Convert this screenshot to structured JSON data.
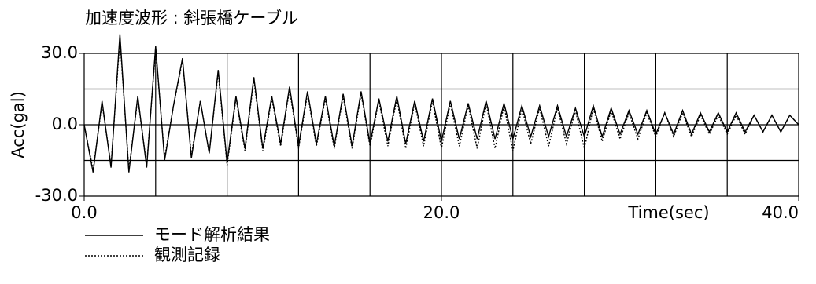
{
  "chart_data": {
    "type": "line",
    "title": "加速度波形 : 斜張橋ケーブル",
    "ylabel": "Acc(gal)",
    "xlabel": "Time(sec)",
    "xlim": [
      0,
      40
    ],
    "ylim": [
      -30,
      30
    ],
    "xticks": [
      {
        "value": 0,
        "label": "0.0"
      },
      {
        "value": 20,
        "label": "20.0"
      },
      {
        "value": 40,
        "label": "40.0"
      }
    ],
    "yticks": [
      {
        "value": -30,
        "label": "-30.0"
      },
      {
        "value": 0,
        "label": "0.0"
      },
      {
        "value": 30,
        "label": "30.0"
      }
    ],
    "xgrid": [
      0,
      4,
      8,
      12,
      16,
      20,
      24,
      28,
      32,
      36,
      40
    ],
    "ygrid": [
      -30,
      -15,
      0,
      15,
      30
    ],
    "x": [
      0,
      0.5,
      1,
      1.5,
      2,
      2.5,
      3,
      3.5,
      4,
      4.5,
      5,
      5.5,
      6,
      6.5,
      7,
      7.5,
      8,
      8.5,
      9,
      9.5,
      10,
      10.5,
      11,
      11.5,
      12,
      12.5,
      13,
      13.5,
      14,
      14.5,
      15,
      15.5,
      16,
      16.5,
      17,
      17.5,
      18,
      18.5,
      19,
      19.5,
      20,
      20.5,
      21,
      21.5,
      22,
      22.5,
      23,
      23.5,
      24,
      24.5,
      25,
      25.5,
      26,
      26.5,
      27,
      27.5,
      28,
      28.5,
      29,
      29.5,
      30,
      30.5,
      31,
      31.5,
      32,
      32.5,
      33,
      33.5,
      34,
      34.5,
      35,
      35.5,
      36,
      36.5,
      37,
      37.5,
      38,
      38.5,
      39,
      39.5,
      40
    ],
    "series": [
      {
        "name": "モード解析結果",
        "color": "#000000",
        "dash": "none",
        "values": [
          0,
          -20,
          10,
          -18,
          38,
          -20,
          12,
          -18,
          33,
          -15,
          8,
          28,
          -14,
          10,
          -12,
          23,
          -16,
          12,
          -10,
          20,
          -10,
          12,
          -8,
          16,
          -9,
          14,
          -8,
          12,
          -9,
          13,
          -9,
          14,
          -8,
          11,
          -7,
          12,
          -8,
          10,
          -7,
          11,
          -7,
          10,
          -6,
          9,
          -6,
          10,
          -6,
          9,
          -6,
          8,
          -5,
          8,
          -5,
          8,
          -5,
          7,
          -5,
          8,
          -5,
          7,
          -4,
          6,
          -4,
          6,
          -4,
          5,
          -4,
          6,
          -4,
          5,
          -3,
          5,
          -3,
          5,
          -3,
          4,
          -3,
          4,
          -3,
          4,
          0
        ]
      },
      {
        "name": "観測記録",
        "color": "#000000",
        "dash": "2,2",
        "values": [
          0,
          -19,
          9,
          -17,
          36,
          -19,
          11,
          -17,
          32,
          -14,
          8,
          27,
          -13,
          10,
          -12,
          22,
          -17,
          11,
          -11,
          19,
          -11,
          11,
          -9,
          15,
          -10,
          13,
          -9,
          11,
          -10,
          12,
          -10,
          13,
          -9,
          10,
          -9,
          11,
          -10,
          9,
          -9,
          10,
          -10,
          9,
          -9,
          8,
          -10,
          9,
          -10,
          8,
          -11,
          7,
          -8,
          7,
          -9,
          7,
          -8,
          6,
          -10,
          7,
          -7,
          6,
          -6,
          5,
          -6,
          5,
          -5,
          5,
          -5,
          5,
          -5,
          4,
          -4,
          4,
          -4,
          4,
          -4,
          4,
          -3,
          4,
          -3,
          4,
          0
        ]
      }
    ]
  }
}
